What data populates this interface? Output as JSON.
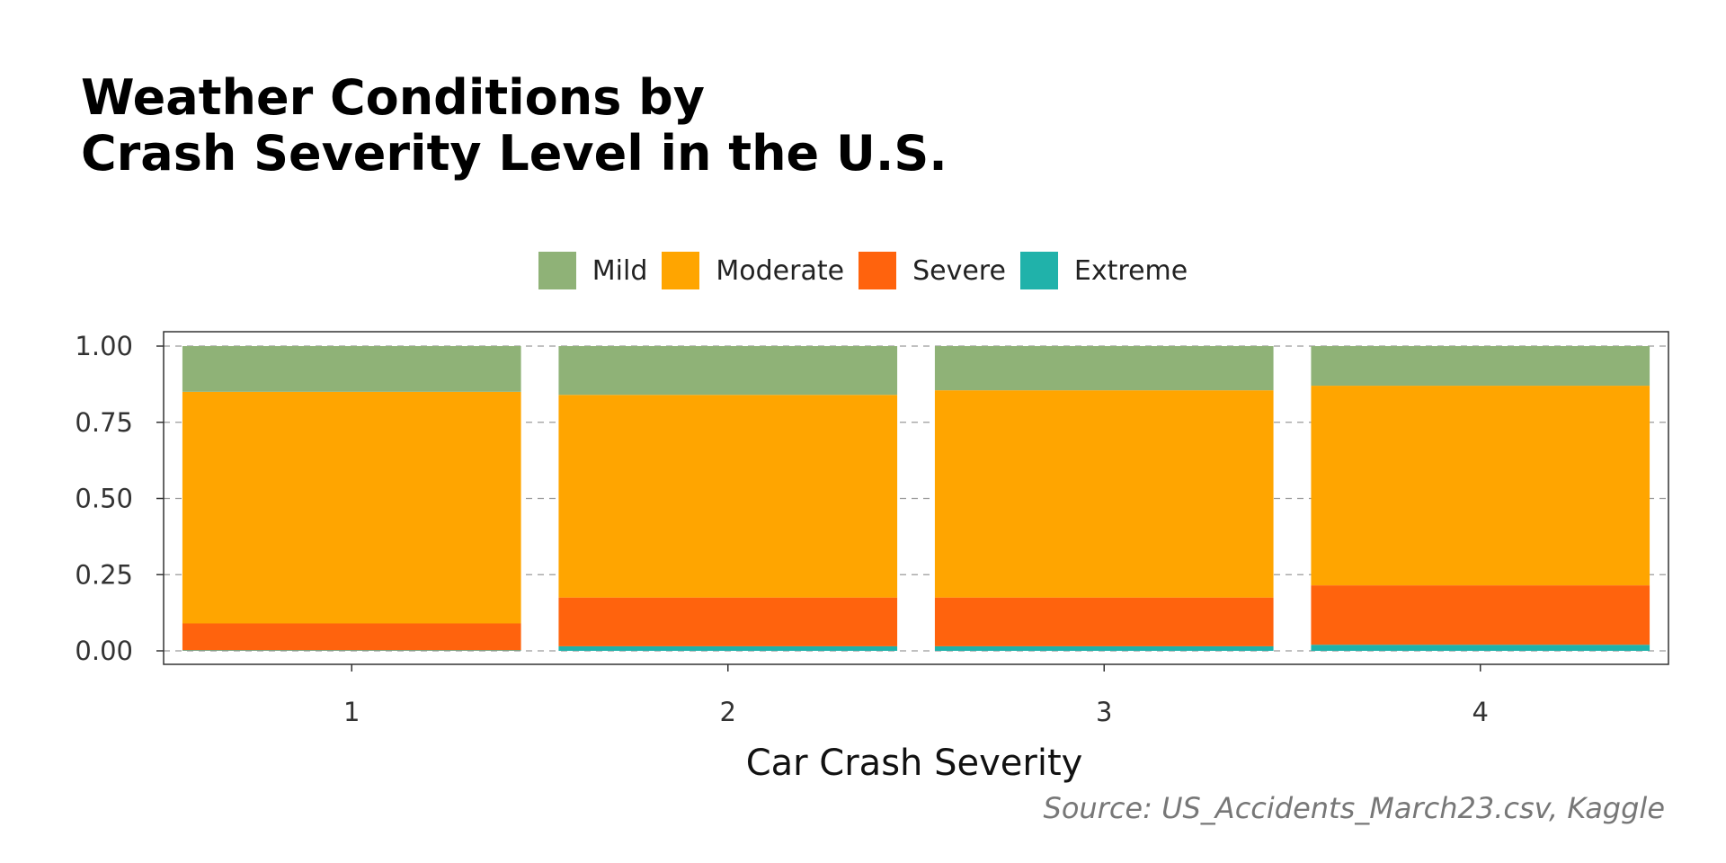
{
  "chart_data": {
    "type": "bar",
    "stacked": true,
    "title_lines": [
      "Weather Conditions by",
      "Crash Severity Level in the U.S."
    ],
    "xlabel": "Car Crash Severity",
    "ylabel": "",
    "source": "Source: US_Accidents_March23.csv, Kaggle",
    "categories": [
      "1",
      "2",
      "3",
      "4"
    ],
    "yticks": [
      "0.00",
      "0.25",
      "0.50",
      "0.75",
      "1.00"
    ],
    "ylim": [
      0,
      1
    ],
    "grid": "horizontal-dashed",
    "legend_position": "top-center",
    "series": [
      {
        "name": "Extreme",
        "color": "#20B2AA",
        "values": [
          0.002,
          0.015,
          0.015,
          0.02
        ]
      },
      {
        "name": "Severe",
        "color": "#FF630D",
        "values": [
          0.088,
          0.16,
          0.16,
          0.195
        ]
      },
      {
        "name": "Moderate",
        "color": "#FFA500",
        "values": [
          0.76,
          0.665,
          0.68,
          0.655
        ]
      },
      {
        "name": "Mild",
        "color": "#8FB277",
        "values": [
          0.15,
          0.16,
          0.145,
          0.13
        ]
      }
    ],
    "legend_order": [
      "Mild",
      "Moderate",
      "Severe",
      "Extreme"
    ]
  }
}
